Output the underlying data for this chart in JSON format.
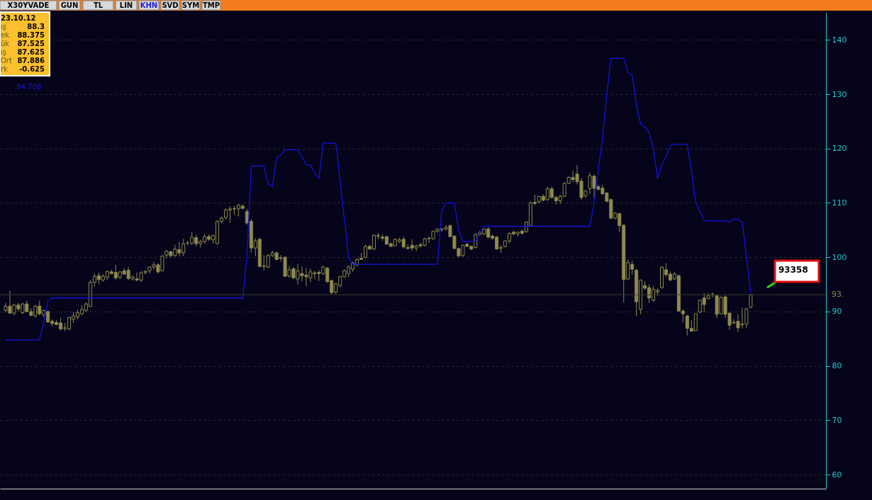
{
  "chart_data": {
    "type": "candlestick",
    "color": "#8f8a4d",
    "categories": [
      null,
      null,
      null,
      null,
      null,
      null,
      null,
      null,
      null,
      null,
      null,
      null,
      null,
      null,
      null,
      null,
      null,
      null,
      null,
      null,
      null,
      null,
      null,
      null,
      null,
      null,
      null,
      null,
      null,
      null,
      null,
      null,
      null,
      null,
      null,
      null,
      null,
      null,
      null,
      null,
      null,
      null,
      null,
      null,
      null,
      null,
      null,
      null,
      null,
      null,
      null,
      null,
      null,
      null,
      null,
      null,
      null,
      null,
      null,
      null,
      null,
      null,
      null,
      null,
      null,
      null,
      null,
      null,
      null,
      null,
      null,
      null,
      null,
      null,
      null,
      null,
      null,
      null,
      null,
      null,
      null,
      null,
      null,
      null,
      null,
      null,
      null,
      null,
      null,
      null,
      null,
      null,
      null,
      null,
      null,
      null,
      null,
      null,
      null,
      null,
      null,
      null,
      null,
      null,
      null,
      null,
      null,
      null,
      null,
      null,
      null,
      null,
      null,
      null,
      null,
      null,
      null,
      null,
      null,
      null,
      null,
      null,
      null,
      null,
      null,
      null,
      null,
      null,
      null,
      null,
      null,
      null,
      null,
      null,
      null,
      null,
      null,
      null,
      null,
      null,
      null,
      null,
      null,
      null,
      null,
      null,
      null,
      null,
      null,
      null,
      null,
      null,
      null,
      null,
      null,
      null,
      null,
      null,
      null,
      null,
      null,
      null,
      null,
      null,
      null,
      null,
      null,
      null,
      null,
      null,
      null,
      null,
      null,
      null,
      null,
      null,
      null
    ],
    "ohlc": [
      [
        90.2,
        91.6,
        89.9,
        91.0
      ],
      [
        91.0,
        93.8,
        89.6,
        89.7
      ],
      [
        89.7,
        91.5,
        89.3,
        91.2
      ],
      [
        91.2,
        91.6,
        90.0,
        90.5
      ],
      [
        89.8,
        91.6,
        89.5,
        91.4
      ],
      [
        91.4,
        92.0,
        89.9,
        90.0
      ],
      [
        90.0,
        90.6,
        89.2,
        89.3
      ],
      [
        89.2,
        91.2,
        88.9,
        91.0
      ],
      [
        91.0,
        92.0,
        89.3,
        89.6
      ],
      [
        89.4,
        90.4,
        89.0,
        90.2
      ],
      [
        90.0,
        90.2,
        87.9,
        88.1
      ],
      [
        88.2,
        88.6,
        87.3,
        87.8
      ],
      [
        88.0,
        88.4,
        87.5,
        87.6
      ],
      [
        87.9,
        88.9,
        86.5,
        86.8
      ],
      [
        86.9,
        87.9,
        86.4,
        87.0
      ],
      [
        86.8,
        89.0,
        86.6,
        88.9
      ],
      [
        88.6,
        89.9,
        87.9,
        89.2
      ],
      [
        89.0,
        90.3,
        88.6,
        89.8
      ],
      [
        89.6,
        91.2,
        89.4,
        90.4
      ],
      [
        90.2,
        91.7,
        90.0,
        91.4
      ],
      [
        90.9,
        95.8,
        90.9,
        95.4
      ],
      [
        95.4,
        97.0,
        94.6,
        96.5
      ],
      [
        96.6,
        97.2,
        95.0,
        95.9
      ],
      [
        95.8,
        96.9,
        95.5,
        96.5
      ],
      [
        96.3,
        97.5,
        95.8,
        97.4
      ],
      [
        97.3,
        97.7,
        96.9,
        97.0
      ],
      [
        97.2,
        98.6,
        95.9,
        96.2
      ],
      [
        96.3,
        97.4,
        96.0,
        97.3
      ],
      [
        97.5,
        98.0,
        96.8,
        96.9
      ],
      [
        97.6,
        98.2,
        95.8,
        96.1
      ],
      [
        96.0,
        96.6,
        95.7,
        96.4
      ],
      [
        96.0,
        97.2,
        95.6,
        95.8
      ],
      [
        95.8,
        97.5,
        95.4,
        97.1
      ],
      [
        97.2,
        97.6,
        96.8,
        97.4
      ],
      [
        97.5,
        98.3,
        97.0,
        98.2
      ],
      [
        98.2,
        99.2,
        97.7,
        98.6
      ],
      [
        98.6,
        98.9,
        97.0,
        97.3
      ],
      [
        97.5,
        100.4,
        97.4,
        100.2
      ],
      [
        100.4,
        101.4,
        99.8,
        101.1
      ],
      [
        101.0,
        101.2,
        99.9,
        100.3
      ],
      [
        100.3,
        102.3,
        100.1,
        101.5
      ],
      [
        101.4,
        102.8,
        100.2,
        100.8
      ],
      [
        100.8,
        103.4,
        100.2,
        102.5
      ],
      [
        102.6,
        103.0,
        102.2,
        102.6
      ],
      [
        102.6,
        104.6,
        102.2,
        103.7
      ],
      [
        103.6,
        104.1,
        102.0,
        102.5
      ],
      [
        102.5,
        103.2,
        101.8,
        102.9
      ],
      [
        102.9,
        104.3,
        102.5,
        103.8
      ],
      [
        103.8,
        104.2,
        103.0,
        103.3
      ],
      [
        103.2,
        104.0,
        102.5,
        104.0
      ],
      [
        102.5,
        106.8,
        102.3,
        106.6
      ],
      [
        106.6,
        107.5,
        106.3,
        107.2
      ],
      [
        107.3,
        109.0,
        106.9,
        108.7
      ],
      [
        108.7,
        109.4,
        106.3,
        108.9
      ],
      [
        108.9,
        109.5,
        107.8,
        108.9
      ],
      [
        108.9,
        109.8,
        107.5,
        109.6
      ],
      [
        109.4,
        109.8,
        108.8,
        109.0
      ],
      [
        108.4,
        108.9,
        106.0,
        106.3
      ],
      [
        106.6,
        107.0,
        100.8,
        101.7
      ],
      [
        101.7,
        103.5,
        100.2,
        103.0
      ],
      [
        103.3,
        103.6,
        98.2,
        98.3
      ],
      [
        98.3,
        100.4,
        97.6,
        98.4
      ],
      [
        98.2,
        100.6,
        98.0,
        100.3
      ],
      [
        100.3,
        101.2,
        100.0,
        100.8
      ],
      [
        100.8,
        101.0,
        99.4,
        99.6
      ],
      [
        99.9,
        100.4,
        99.2,
        99.8
      ],
      [
        100.0,
        100.2,
        96.4,
        96.5
      ],
      [
        96.5,
        98.4,
        96.3,
        97.7
      ],
      [
        97.9,
        98.2,
        96.0,
        96.2
      ],
      [
        96.0,
        98.8,
        95.0,
        97.5
      ],
      [
        97.0,
        98.3,
        95.6,
        96.6
      ],
      [
        96.7,
        98.0,
        94.7,
        96.4
      ],
      [
        96.2,
        97.9,
        95.4,
        97.3
      ],
      [
        97.1,
        97.5,
        96.0,
        97.0
      ],
      [
        97.2,
        97.6,
        95.6,
        97.0
      ],
      [
        97.0,
        98.4,
        96.7,
        98.2
      ],
      [
        98.0,
        98.2,
        95.3,
        95.5
      ],
      [
        95.7,
        95.9,
        93.2,
        93.5
      ],
      [
        93.6,
        95.3,
        93.2,
        95.1
      ],
      [
        94.8,
        96.6,
        94.5,
        96.4
      ],
      [
        96.4,
        97.8,
        96.2,
        97.5
      ],
      [
        97.0,
        98.5,
        96.3,
        98.2
      ],
      [
        97.8,
        99.2,
        97.3,
        98.9
      ],
      [
        98.6,
        99.8,
        98.3,
        99.6
      ],
      [
        99.8,
        100.8,
        99.5,
        99.6
      ],
      [
        100.0,
        102.3,
        99.8,
        102.0
      ],
      [
        102.0,
        102.3,
        101.3,
        101.5
      ],
      [
        101.5,
        104.2,
        101.3,
        104.0
      ],
      [
        104.0,
        104.5,
        103.3,
        103.9
      ],
      [
        103.7,
        104.2,
        103.0,
        103.5
      ],
      [
        103.8,
        103.9,
        102.3,
        102.4
      ],
      [
        102.5,
        102.7,
        101.9,
        102.0
      ],
      [
        102.1,
        103.5,
        102.0,
        103.3
      ],
      [
        102.9,
        103.6,
        102.6,
        103.2
      ],
      [
        103.3,
        103.8,
        101.6,
        101.9
      ],
      [
        101.8,
        102.4,
        101.5,
        101.6
      ],
      [
        102.2,
        103.3,
        101.2,
        101.7
      ],
      [
        101.7,
        102.3,
        101.1,
        102.1
      ],
      [
        102.3,
        102.7,
        101.8,
        102.1
      ],
      [
        102.2,
        103.6,
        102.0,
        103.4
      ],
      [
        103.4,
        103.8,
        102.6,
        103.5
      ],
      [
        103.4,
        104.9,
        103.2,
        104.8
      ],
      [
        104.8,
        105.3,
        104.5,
        105.2
      ],
      [
        105.1,
        105.4,
        104.7,
        105.2
      ],
      [
        105.2,
        105.9,
        104.9,
        105.5
      ],
      [
        105.8,
        106.0,
        103.7,
        103.8
      ],
      [
        103.9,
        104.0,
        101.5,
        101.6
      ],
      [
        101.6,
        101.7,
        100.1,
        100.2
      ],
      [
        100.3,
        102.3,
        100.1,
        102.2
      ],
      [
        102.4,
        102.6,
        101.9,
        102.0
      ],
      [
        102.0,
        102.1,
        101.3,
        101.5
      ],
      [
        101.8,
        104.4,
        101.6,
        104.2
      ],
      [
        104.2,
        104.9,
        104.0,
        104.5
      ],
      [
        104.3,
        105.3,
        104.1,
        105.2
      ],
      [
        105.2,
        105.5,
        103.5,
        103.7
      ],
      [
        103.9,
        104.1,
        103.2,
        103.5
      ],
      [
        103.7,
        103.9,
        101.4,
        101.5
      ],
      [
        101.6,
        102.2,
        100.8,
        101.8
      ],
      [
        102.0,
        103.1,
        101.8,
        103.0
      ],
      [
        103.0,
        104.6,
        102.6,
        104.4
      ],
      [
        104.6,
        104.9,
        104.1,
        104.3
      ],
      [
        104.3,
        104.6,
        103.8,
        104.6
      ],
      [
        104.8,
        105.1,
        104.2,
        104.4
      ],
      [
        104.7,
        106.6,
        104.5,
        106.5
      ],
      [
        105.8,
        110.3,
        105.7,
        110.0
      ],
      [
        110.1,
        111.5,
        109.6,
        109.9
      ],
      [
        110.2,
        111.3,
        109.9,
        111.2
      ],
      [
        111.2,
        111.6,
        110.3,
        110.5
      ],
      [
        110.6,
        113.0,
        110.4,
        112.6
      ],
      [
        112.6,
        113.0,
        110.8,
        111.0
      ],
      [
        111.0,
        111.3,
        109.7,
        110.4
      ],
      [
        110.4,
        111.5,
        109.8,
        111.2
      ],
      [
        111.2,
        113.8,
        111.1,
        113.6
      ],
      [
        113.6,
        114.9,
        113.5,
        114.7
      ],
      [
        114.7,
        115.9,
        113.8,
        114.3
      ],
      [
        115.3,
        117.0,
        113.4,
        113.9
      ],
      [
        114.0,
        114.6,
        110.6,
        111.0
      ],
      [
        111.3,
        112.3,
        110.9,
        112.2
      ],
      [
        112.6,
        115.6,
        111.6,
        115.0
      ],
      [
        114.9,
        115.2,
        110.9,
        112.7
      ],
      [
        113.0,
        113.4,
        112.3,
        112.5
      ],
      [
        112.7,
        113.3,
        111.4,
        111.7
      ],
      [
        111.8,
        112.0,
        110.2,
        110.3
      ],
      [
        110.6,
        110.8,
        107.0,
        107.2
      ],
      [
        107.2,
        108.3,
        107.0,
        108.1
      ],
      [
        108.0,
        108.2,
        104.6,
        105.8
      ],
      [
        105.9,
        106.0,
        91.7,
        95.9
      ],
      [
        96.0,
        99.5,
        95.8,
        99.0
      ],
      [
        98.7,
        99.4,
        96.8,
        97.8
      ],
      [
        97.6,
        97.9,
        89.2,
        91.8
      ],
      [
        90.4,
        95.9,
        89.5,
        95.8
      ],
      [
        94.8,
        95.6,
        94.0,
        94.3
      ],
      [
        94.4,
        95.0,
        91.6,
        92.5
      ],
      [
        92.1,
        94.7,
        91.8,
        94.1
      ],
      [
        93.6,
        94.3,
        92.9,
        93.9
      ],
      [
        94.4,
        98.3,
        94.2,
        98.2
      ],
      [
        97.7,
        98.9,
        96.4,
        96.8
      ],
      [
        96.9,
        97.4,
        95.6,
        95.8
      ],
      [
        96.0,
        97.3,
        95.8,
        96.9
      ],
      [
        96.6,
        96.8,
        90.0,
        90.1
      ],
      [
        90.1,
        90.4,
        88.0,
        89.6
      ],
      [
        89.2,
        89.4,
        85.6,
        86.9
      ],
      [
        86.9,
        88.4,
        86.3,
        86.4
      ],
      [
        86.5,
        89.6,
        86.4,
        89.6
      ],
      [
        89.9,
        92.2,
        89.7,
        92.1
      ],
      [
        92.5,
        93.4,
        89.9,
        91.3
      ],
      [
        92.4,
        93.4,
        92.2,
        92.9
      ],
      [
        93.1,
        93.5,
        92.6,
        93.2
      ],
      [
        92.9,
        93.0,
        88.8,
        89.5
      ],
      [
        89.6,
        92.8,
        89.5,
        92.6
      ],
      [
        92.7,
        93.0,
        88.8,
        89.5
      ],
      [
        89.7,
        89.9,
        86.6,
        87.5
      ],
      [
        88.0,
        88.6,
        87.7,
        87.9
      ],
      [
        88.2,
        89.5,
        86.2,
        87.0
      ],
      [
        87.6,
        90.7,
        86.9,
        87.7
      ],
      [
        87.7,
        90.7,
        87.0,
        90.5
      ],
      [
        90.8,
        93.2,
        90.6,
        93.1
      ]
    ],
    "series": [
      {
        "type": "line",
        "color": "#1212e0",
        "values": [
          84.8,
          84.8,
          84.8,
          84.8,
          84.8,
          84.8,
          84.8,
          84.8,
          84.8,
          88,
          92,
          92.5,
          92.5,
          92.5,
          92.5,
          92.5,
          92.5,
          92.5,
          92.5,
          92.5,
          92.5,
          92.5,
          92.5,
          92.5,
          92.5,
          92.5,
          92.5,
          92.5,
          92.5,
          92.5,
          92.5,
          92.5,
          92.5,
          92.5,
          92.5,
          92.5,
          92.5,
          92.5,
          92.5,
          92.5,
          92.5,
          92.5,
          92.5,
          92.5,
          92.5,
          92.5,
          92.5,
          92.5,
          92.5,
          92.5,
          92.5,
          92.5,
          92.5,
          92.5,
          92.5,
          92.5,
          92.5,
          100,
          116.8,
          116.8,
          116.8,
          116.8,
          113.5,
          113,
          118.3,
          118.8,
          119.8,
          119.8,
          119.8,
          119.8,
          118.5,
          117,
          117,
          115.5,
          114.5,
          121,
          121,
          121,
          121,
          114,
          107,
          100,
          98.7,
          98.7,
          98.7,
          98.7,
          98.7,
          98.7,
          98.7,
          98.7,
          98.7,
          98.7,
          98.7,
          98.7,
          98.7,
          98.7,
          98.7,
          98.7,
          98.7,
          98.7,
          98.7,
          98.7,
          98.7,
          108.5,
          110,
          110,
          110,
          105,
          102.9,
          102.9,
          102.9,
          102.9,
          104.5,
          105.7,
          105.7,
          105.7,
          105.7,
          105.7,
          105.7,
          105.7,
          105.7,
          105.7,
          105.7,
          105.7,
          105.7,
          105.7,
          105.7,
          105.7,
          105.7,
          105.7,
          105.7,
          105.7,
          105.7,
          105.7,
          105.7,
          105.7,
          105.7,
          105.7,
          105.7,
          110,
          116,
          122,
          130,
          136.6,
          136.6,
          136.6,
          136.6,
          134,
          133.5,
          128,
          124.5,
          124,
          123,
          120,
          114.5,
          117,
          118.5,
          120.5,
          120.8,
          120.8,
          120.8,
          120.8,
          116,
          110,
          108.5,
          106.8,
          106.7,
          106.7,
          106.7,
          106.7,
          106.7,
          106.5,
          107,
          107,
          106.5,
          100,
          93.5
        ]
      }
    ],
    "ylim": [
      57.4,
      145
    ],
    "yticks": [
      60,
      70,
      80,
      90,
      100,
      110,
      120,
      130,
      140
    ],
    "grid": "y",
    "tick_labels": "y",
    "ref_lines": [
      {
        "axis": "y",
        "value": 93.1,
        "label": "93.",
        "color": "#3a3a2a"
      }
    ],
    "annotations": [
      "X30YVADE",
      "GUN",
      "TL",
      "LIN",
      "KHN",
      "SVD",
      "SYM",
      "TMP",
      "23.10.12",
      "ış 88.3",
      "ek 88.375",
      "ük 87.525",
      "ış 87.625",
      "Ort 87.886",
      "rk -0.625",
      ":84.708",
      "93358"
    ]
  }
}
